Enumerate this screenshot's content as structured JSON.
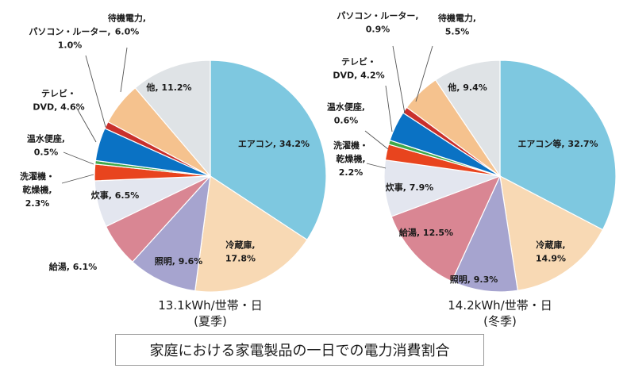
{
  "title": "家庭における家電製品の一日での電力消費割合",
  "chart_data": [
    {
      "type": "pie",
      "caption": [
        "13.1kWh/世帯・日",
        "(夏季)"
      ],
      "slices": [
        {
          "label": "エアコン",
          "value": 34.2,
          "color": "#7ec8e0",
          "text": [
            "エアコン, 34.2%"
          ]
        },
        {
          "label": "冷蔵庫",
          "value": 17.8,
          "color": "#f8d9b4",
          "text": [
            "冷蔵庫,",
            "17.8%"
          ]
        },
        {
          "label": "照明",
          "value": 9.6,
          "color": "#a6a4cf",
          "text": [
            "照明, 9.6%"
          ]
        },
        {
          "label": "給湯",
          "value": 6.1,
          "color": "#d98693",
          "text": [
            "給湯, 6.1%"
          ]
        },
        {
          "label": "炊事",
          "value": 6.5,
          "color": "#e3e6ef",
          "text": [
            "炊事, 6.5%"
          ]
        },
        {
          "label": "洗濯機・乾燥機",
          "value": 2.3,
          "color": "#e8441e",
          "text": [
            "洗濯機・",
            "乾燥機,",
            "2.3%"
          ]
        },
        {
          "label": "温水便座",
          "value": 0.5,
          "color": "#3fa84a",
          "text": [
            "温水便座,",
            "0.5%"
          ]
        },
        {
          "label": "テレビ・DVD",
          "value": 4.6,
          "color": "#0a72c4",
          "text": [
            "テレビ・",
            "DVD, 4.6%"
          ]
        },
        {
          "label": "パソコン・ルーター",
          "value": 1.0,
          "color": "#c9302c",
          "text": [
            "パソコン・ルーター,",
            "1.0%"
          ]
        },
        {
          "label": "待機電力",
          "value": 6.0,
          "color": "#f5c28e",
          "text": [
            "待機電力,",
            "6.0%"
          ]
        },
        {
          "label": "他",
          "value": 11.2,
          "color": "#dfe3e6",
          "text": [
            "他, 11.2%"
          ]
        }
      ]
    },
    {
      "type": "pie",
      "caption": [
        "14.2kWh/世帯・日",
        "(冬季)"
      ],
      "slices": [
        {
          "label": "エアコン等",
          "value": 32.7,
          "color": "#7ec8e0",
          "text": [
            "エアコン等, 32.7%"
          ]
        },
        {
          "label": "冷蔵庫",
          "value": 14.9,
          "color": "#f8d9b4",
          "text": [
            "冷蔵庫,",
            "14.9%"
          ]
        },
        {
          "label": "照明",
          "value": 9.3,
          "color": "#a6a4cf",
          "text": [
            "照明, 9.3%"
          ]
        },
        {
          "label": "給湯",
          "value": 12.5,
          "color": "#d98693",
          "text": [
            "給湯, 12.5%"
          ]
        },
        {
          "label": "炊事",
          "value": 7.9,
          "color": "#e3e6ef",
          "text": [
            "炊事, 7.9%"
          ]
        },
        {
          "label": "洗濯機・乾燥機",
          "value": 2.2,
          "color": "#e8441e",
          "text": [
            "洗濯機・",
            "乾燥機,",
            "2.2%"
          ]
        },
        {
          "label": "温水便座",
          "value": 0.6,
          "color": "#3fa84a",
          "text": [
            "温水便座,",
            "0.6%"
          ]
        },
        {
          "label": "テレビ・DVD",
          "value": 4.2,
          "color": "#0a72c4",
          "text": [
            "テレビ・",
            "DVD, 4.2%"
          ]
        },
        {
          "label": "パソコン・ルーター",
          "value": 0.9,
          "color": "#c9302c",
          "text": [
            "パソコン・ルーター,",
            "0.9%"
          ]
        },
        {
          "label": "待機電力",
          "value": 5.5,
          "color": "#f5c28e",
          "text": [
            "待機電力,",
            "5.5%"
          ]
        },
        {
          "label": "他",
          "value": 9.4,
          "color": "#dfe3e6",
          "text": [
            "他, 9.4%"
          ]
        }
      ]
    }
  ]
}
